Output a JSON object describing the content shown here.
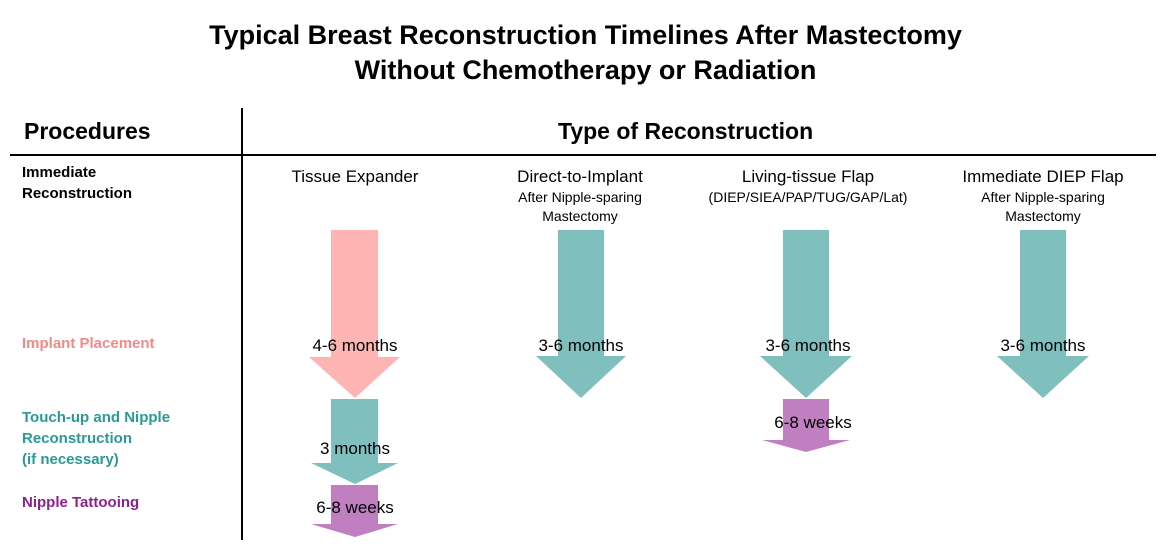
{
  "title": {
    "line1": "Typical Breast Reconstruction Timelines After Mastectomy",
    "line2": "Without Chemotherapy or Radiation"
  },
  "headers": {
    "procedures": "Procedures",
    "type_of_reconstruction": "Type of Reconstruction"
  },
  "procedures": {
    "immediate_line1": "Immediate",
    "immediate_line2": "Reconstruction",
    "implant_placement": "Implant Placement",
    "touchup_line1": "Touch-up and Nipple",
    "touchup_line2": "Reconstruction",
    "touchup_line3": "(if necessary)",
    "nipple_tattooing": "Nipple Tattooing"
  },
  "columns": [
    {
      "title": "Tissue Expander",
      "sub1": "",
      "sub2": ""
    },
    {
      "title": "Direct-to-Implant",
      "sub1": "After Nipple-sparing",
      "sub2": "Mastectomy"
    },
    {
      "title": "Living-tissue Flap",
      "sub1": "(DIEP/SIEA/PAP/TUG/GAP/Lat)",
      "sub2": ""
    },
    {
      "title": "Immediate DIEP Flap",
      "sub1": "After Nipple-sparing",
      "sub2": "Mastectomy"
    }
  ],
  "durations": {
    "expander_implant": "4-6 months",
    "expander_touchup": "3 months",
    "expander_tattoo": "6-8 weeks",
    "direct_implant": "3-6 months",
    "flap_implant": "3-6 months",
    "flap_tattoo": "6-8 weeks",
    "diep_implant": "3-6 months"
  },
  "colors": {
    "pink": "#fdb4b3",
    "teal": "#7fbfbe",
    "purple": "#c07fc1",
    "implant_label": "#f08a88",
    "touchup_label": "#2a9a96",
    "tattoo_label": "#8e1f8d"
  }
}
